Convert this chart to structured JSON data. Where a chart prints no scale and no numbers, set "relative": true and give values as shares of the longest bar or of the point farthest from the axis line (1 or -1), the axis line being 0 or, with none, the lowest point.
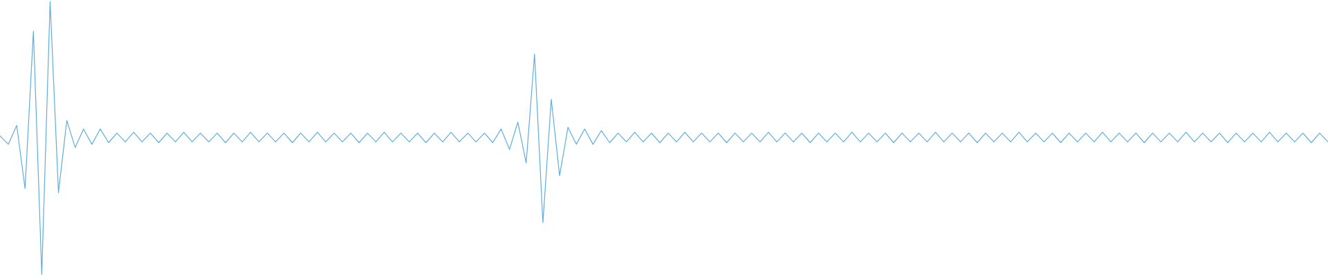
{
  "chart_data": {
    "type": "line",
    "relative": true,
    "color": "#5dade2",
    "categories": [
      null,
      null,
      null,
      null,
      null,
      null,
      null,
      null,
      null,
      null,
      null,
      null,
      null,
      null,
      null,
      null,
      null,
      null,
      null,
      null,
      null,
      null,
      null,
      null,
      null,
      null,
      null,
      null,
      null,
      null,
      null,
      null,
      null,
      null,
      null,
      null,
      null,
      null,
      null,
      null,
      null,
      null,
      null,
      null,
      null,
      null,
      null,
      null,
      null,
      null,
      null,
      null,
      null,
      null,
      null,
      null,
      null,
      null,
      null,
      null,
      null,
      null,
      null,
      null,
      null,
      null,
      null,
      null,
      null,
      null,
      null,
      null,
      null,
      null,
      null,
      null,
      null,
      null,
      null,
      null,
      null,
      null,
      null,
      null,
      null,
      null,
      null,
      null,
      null,
      null,
      null,
      null,
      null,
      null,
      null,
      null,
      null,
      null,
      null,
      null,
      null,
      null,
      null,
      null,
      null,
      null,
      null,
      null,
      null,
      null,
      null,
      null,
      null,
      null,
      null,
      null,
      null,
      null,
      null,
      null,
      null,
      null,
      null,
      null,
      null,
      null,
      null,
      null,
      null,
      null,
      null,
      null,
      null,
      null,
      null,
      null,
      null,
      null,
      null,
      null,
      null,
      null,
      null,
      null,
      null,
      null,
      null,
      null,
      null,
      null,
      null,
      null,
      null,
      null,
      null,
      null,
      null,
      null,
      null,
      null
    ],
    "values": [
      0.508,
      0.477,
      0.546,
      0.315,
      0.891,
      0,
      1,
      0.3,
      0.564,
      0.465,
      0.533,
      0.477,
      0.533,
      0.483,
      0.518,
      0.486,
      0.521,
      0.486,
      0.518,
      0.483,
      0.518,
      0.486,
      0.521,
      0.486,
      0.518,
      0.486,
      0.518,
      0.483,
      0.518,
      0.486,
      0.521,
      0.486,
      0.518,
      0.486,
      0.518,
      0.483,
      0.518,
      0.486,
      0.521,
      0.486,
      0.518,
      0.486,
      0.518,
      0.483,
      0.518,
      0.486,
      0.521,
      0.486,
      0.518,
      0.486,
      0.518,
      0.483,
      0.518,
      0.486,
      0.521,
      0.486,
      0.518,
      0.486,
      0.518,
      0.483,
      0.533,
      0.458,
      0.558,
      0.409,
      0.807,
      0.19,
      0.642,
      0.362,
      0.539,
      0.477,
      0.533,
      0.477,
      0.527,
      0.483,
      0.518,
      0.486,
      0.521,
      0.486,
      0.518,
      0.483,
      0.518,
      0.486,
      0.521,
      0.486,
      0.518,
      0.486,
      0.518,
      0.483,
      0.518,
      0.486,
      0.518,
      0.486,
      0.521,
      0.486,
      0.518,
      0.486,
      0.518,
      0.483,
      0.518,
      0.486,
      0.518,
      0.486,
      0.521,
      0.486,
      0.518,
      0.486,
      0.518,
      0.483,
      0.518,
      0.486,
      0.518,
      0.486,
      0.521,
      0.486,
      0.518,
      0.486,
      0.518,
      0.483,
      0.518,
      0.486,
      0.518,
      0.486,
      0.521,
      0.486,
      0.518,
      0.486,
      0.518,
      0.483,
      0.518,
      0.486,
      0.518,
      0.486,
      0.521,
      0.486,
      0.518,
      0.486,
      0.518,
      0.483,
      0.518,
      0.486,
      0.518,
      0.486,
      0.521,
      0.486,
      0.518,
      0.486,
      0.518,
      0.483,
      0.518,
      0.486,
      0.518,
      0.486,
      0.521,
      0.486,
      0.518,
      0.486,
      0.518,
      0.483,
      0.518,
      0.486
    ]
  }
}
